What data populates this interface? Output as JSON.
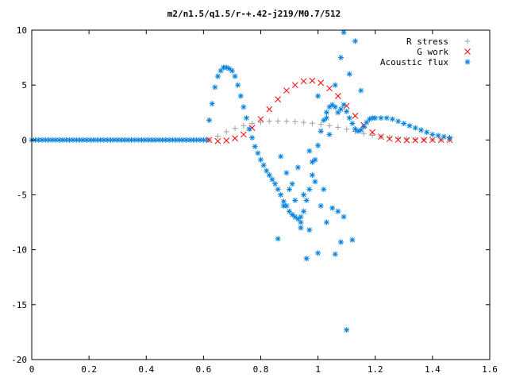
{
  "chart_data": {
    "type": "scatter",
    "title": "m2/n1.5/q1.5/r-+.42-j219/M0.7/512",
    "xlabel": "",
    "ylabel": "",
    "xlim": [
      0,
      1.6
    ],
    "ylim": [
      -20,
      10
    ],
    "grid": false,
    "legend_position": "top-right",
    "x_ticks": [
      "0",
      "0.2",
      "0.4",
      "0.6",
      "0.8",
      "1",
      "1.2",
      "1.4",
      "1.6"
    ],
    "y_ticks": [
      "10",
      "5",
      "0",
      "-5",
      "-10",
      "-15",
      "-20"
    ],
    "x_tick_values": [
      0,
      0.2,
      0.4,
      0.6,
      0.8,
      1.0,
      1.2,
      1.4,
      1.6
    ],
    "y_tick_values": [
      10,
      5,
      0,
      -5,
      -10,
      -15,
      -20
    ],
    "series": [
      {
        "name": "R stress",
        "color": "#a0a0a0",
        "marker": "plus",
        "x": [
          0.62,
          0.65,
          0.68,
          0.71,
          0.74,
          0.77,
          0.8,
          0.83,
          0.86,
          0.89,
          0.92,
          0.95,
          0.98,
          1.01,
          1.04,
          1.07,
          1.1,
          1.13,
          1.16,
          1.19,
          1.22,
          1.25,
          1.28,
          1.31,
          1.34,
          1.37,
          1.4,
          1.43,
          1.46
        ],
        "y": [
          0.0,
          0.35,
          0.75,
          1.05,
          1.3,
          1.5,
          1.62,
          1.7,
          1.72,
          1.7,
          1.66,
          1.6,
          1.52,
          1.42,
          1.3,
          1.15,
          0.98,
          0.78,
          0.58,
          0.42,
          0.3,
          0.22,
          0.15,
          0.1,
          0.06,
          0.04,
          0.02,
          0.01,
          0.0
        ]
      },
      {
        "name": "G work",
        "color": "#ff0000",
        "marker": "cross",
        "x": [
          0.62,
          0.65,
          0.68,
          0.71,
          0.74,
          0.77,
          0.8,
          0.83,
          0.86,
          0.89,
          0.92,
          0.95,
          0.98,
          1.01,
          1.04,
          1.07,
          1.1,
          1.13,
          1.16,
          1.19,
          1.22,
          1.25,
          1.28,
          1.31,
          1.34,
          1.37,
          1.4,
          1.43,
          1.46
        ],
        "y": [
          0.0,
          -0.1,
          -0.05,
          0.15,
          0.5,
          1.1,
          1.9,
          2.8,
          3.7,
          4.5,
          5.0,
          5.35,
          5.4,
          5.2,
          4.7,
          4.0,
          3.1,
          2.2,
          1.35,
          0.7,
          0.3,
          0.1,
          0.02,
          -0.02,
          -0.02,
          -0.01,
          0.0,
          0.0,
          0.0
        ]
      },
      {
        "name": "Acoustic flux",
        "color": "#0080e0",
        "marker": "star",
        "x": [
          0.62,
          0.63,
          0.64,
          0.65,
          0.66,
          0.67,
          0.68,
          0.69,
          0.7,
          0.71,
          0.72,
          0.73,
          0.74,
          0.75,
          0.76,
          0.77,
          0.78,
          0.79,
          0.8,
          0.81,
          0.82,
          0.83,
          0.84,
          0.85,
          0.86,
          0.87,
          0.88,
          0.89,
          0.9,
          0.91,
          0.92,
          0.93,
          0.94,
          0.95,
          0.96,
          0.97,
          0.98,
          0.99,
          1.0,
          1.01,
          1.02,
          1.03,
          1.04,
          1.05,
          1.06,
          1.07,
          1.08,
          1.09,
          1.1,
          1.11,
          1.12,
          1.13,
          1.14,
          1.15,
          1.16,
          1.17,
          1.18,
          1.19,
          1.2,
          1.22,
          1.24,
          1.26,
          1.28,
          1.3,
          1.32,
          1.34,
          1.36,
          1.38,
          1.4,
          1.42,
          1.44,
          1.46,
          0.86,
          0.88,
          0.91,
          0.93,
          0.95,
          0.96,
          0.99,
          1.0,
          1.03,
          1.05,
          1.06,
          1.08,
          1.09,
          1.1,
          1.12,
          0.87,
          0.89,
          0.92,
          0.94,
          0.97,
          0.98,
          1.01,
          1.02,
          1.04,
          1.07,
          1.11,
          1.13,
          1.15,
          1.09,
          1.08,
          1.06,
          1.03,
          1.0,
          0.97,
          0.94,
          0.9
        ],
        "y": [
          1.8,
          3.3,
          4.8,
          5.8,
          6.3,
          6.6,
          6.6,
          6.5,
          6.3,
          5.8,
          5.0,
          4.0,
          3.0,
          2.0,
          1.0,
          0.2,
          -0.6,
          -1.2,
          -1.8,
          -2.3,
          -2.8,
          -3.2,
          -3.6,
          -4.0,
          -4.5,
          -5.0,
          -5.6,
          -6.0,
          -6.5,
          -6.8,
          -7.0,
          -7.2,
          -7.0,
          -6.5,
          -5.5,
          -4.5,
          -3.2,
          -1.8,
          -0.5,
          0.8,
          1.8,
          2.5,
          3.0,
          3.2,
          3.0,
          2.5,
          2.8,
          3.2,
          2.6,
          2.0,
          1.5,
          1.0,
          0.8,
          0.9,
          1.2,
          1.6,
          1.9,
          2.0,
          2.0,
          2.0,
          2.0,
          1.9,
          1.7,
          1.5,
          1.3,
          1.1,
          0.9,
          0.7,
          0.5,
          0.4,
          0.3,
          0.2,
          -9.0,
          -6.0,
          -4.0,
          -2.5,
          -5.0,
          -10.8,
          -3.8,
          -10.3,
          -7.5,
          -6.2,
          -10.4,
          -9.3,
          -7.0,
          -17.3,
          -9.1,
          -1.5,
          -3.0,
          -5.5,
          -8.0,
          -8.2,
          -2.0,
          -6.0,
          -4.5,
          0.5,
          -6.5,
          6.0,
          9.0,
          4.5,
          9.8,
          7.5,
          5.0,
          2.0,
          4.0,
          -1.0,
          -7.5,
          -4.5
        ]
      }
    ]
  }
}
